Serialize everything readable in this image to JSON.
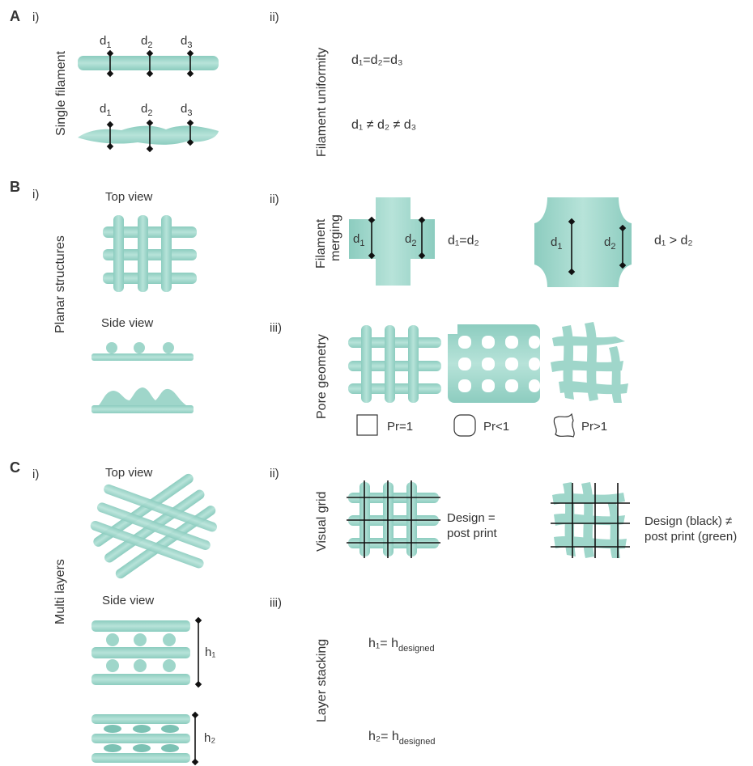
{
  "colors": {
    "filament": "#9fd6ca",
    "filament_dark": "#7cc2b4",
    "grid_lines": "#111111",
    "text": "#333333"
  },
  "panels": {
    "A": {
      "letter": "A",
      "i": "i)",
      "ii": "ii)",
      "vlabel_left": "Single filament",
      "vlabel_right": "Filament uniformity",
      "d1": "d",
      "d1_sub": "1",
      "d2": "d",
      "d2_sub": "2",
      "d3": "d",
      "d3_sub": "3",
      "eq_uniform": "d₁=d₂=d₃",
      "eq_nonuniform": "d₁ ≠ d₂ ≠ d₃"
    },
    "B": {
      "letter": "B",
      "i": "i)",
      "ii": "ii)",
      "iii": "iii)",
      "vlabel_left": "Planar structures",
      "top_view": "Top view",
      "side_view": "Side view",
      "merging_label_line1": "Filament",
      "merging_label_line2": "merging",
      "eq_merge_equal": "d₁=d₂",
      "eq_merge_greater": "d₁ > d₂",
      "pore_label": "Pore geometry",
      "pr_equal": "Pr=1",
      "pr_less": "Pr<1",
      "pr_greater": "Pr>1"
    },
    "C": {
      "letter": "C",
      "i": "i)",
      "ii": "ii)",
      "iii": "iii)",
      "vlabel_left": "Multi layers",
      "top_view": "Top view",
      "side_view": "Side view",
      "visual_grid_label": "Visual grid",
      "design_equal_line1": "Design =",
      "design_equal_line2": "post print",
      "design_notequal_line1": "Design (black) ≠",
      "design_notequal_line2": "post print (green)",
      "layer_label": "Layer stacking",
      "h1": "h₁= h",
      "h1_sub": "designed",
      "h2": "h₂= h",
      "h2_sub": "designed",
      "h1_marker": "h₁",
      "h2_marker": "h₂"
    }
  }
}
